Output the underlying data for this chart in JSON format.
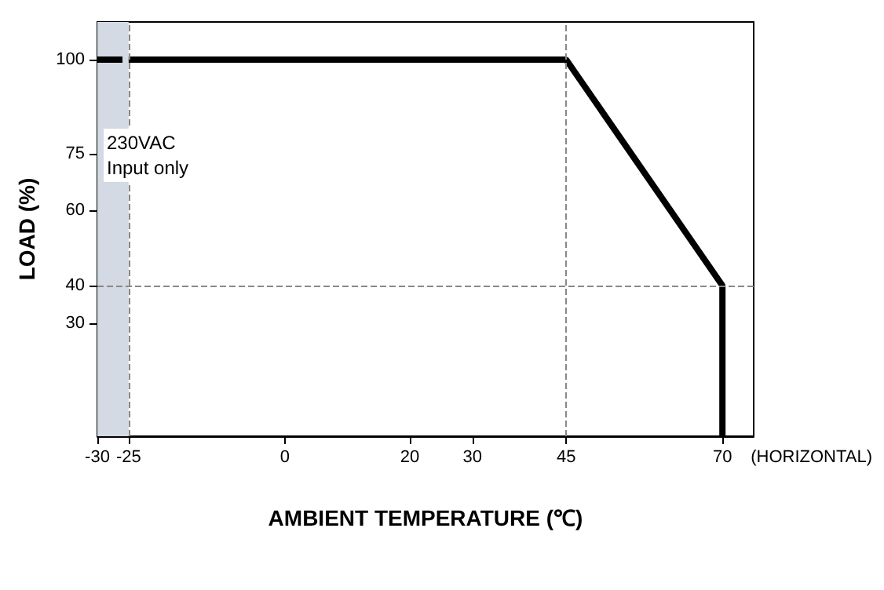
{
  "chart_data": {
    "type": "line",
    "xlabel": "AMBIENT TEMPERATURE (℃)",
    "ylabel": "LOAD (%)",
    "xlim": [
      -30,
      75
    ],
    "xticks": [
      -30,
      -25,
      0,
      20,
      30,
      45,
      70
    ],
    "ylim": [
      0,
      110
    ],
    "yticks": [
      30,
      40,
      60,
      75,
      100
    ],
    "grid": false,
    "marker": "none",
    "series": [
      {
        "color": "#000000",
        "x": [
          -30,
          -25
        ],
        "values": [
          100,
          100
        ],
        "line_style": "dashed"
      },
      {
        "color": "#000000",
        "x": [
          -25,
          45,
          70,
          70
        ],
        "values": [
          100,
          100,
          40,
          0
        ],
        "line_style": "solid"
      }
    ],
    "bands": [
      {
        "axis": "x",
        "from": -30,
        "to": -25,
        "color": "#d3dae3"
      }
    ],
    "ref_lines": [
      {
        "axis": "x",
        "value": -25,
        "color": "#888888",
        "line_style": "dashed"
      },
      {
        "axis": "x",
        "value": 45,
        "color": "#888888",
        "line_style": "dashed"
      },
      {
        "axis": "y",
        "value": 40,
        "color": "#888888",
        "line_style": "dashed"
      }
    ],
    "annotations": [
      "230VAC\nInput only",
      "(HORIZONTAL)"
    ]
  }
}
